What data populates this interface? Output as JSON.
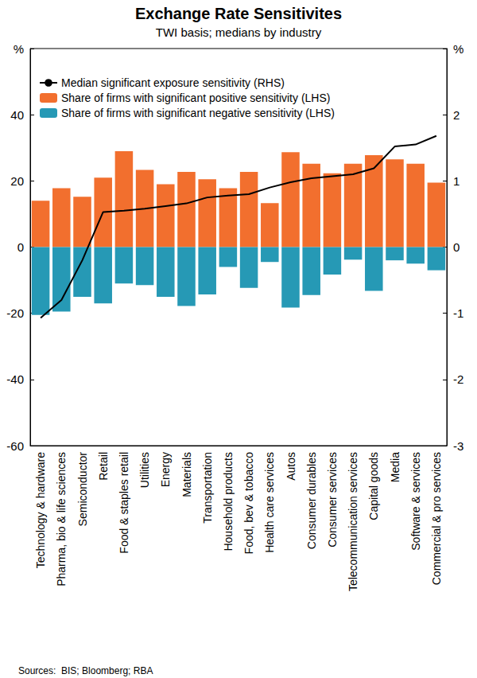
{
  "chart_data": {
    "type": "bar",
    "title": "Exchange Rate Sensitivites",
    "subtitle": "TWI basis; medians by industry",
    "caption": "Sources:  BIS; Bloomberg; RBA",
    "categories": [
      "Technology & hardware",
      "Pharma, bio & life sciences",
      "Semiconductor",
      "Retail",
      "Food & staples retail",
      "Utilities",
      "Energy",
      "Materials",
      "Transportation",
      "Household products",
      "Food, bev & tobacco",
      "Health care services",
      "Autos",
      "Consumer durables",
      "Consumer services",
      "Telecommunication services",
      "Capital goods",
      "Media",
      "Software & services",
      "Commercial & pro services"
    ],
    "series": [
      {
        "name": "Median significant exposure sensitivity (RHS)",
        "type": "line",
        "axis": "y2",
        "color": "#000000",
        "values": [
          -1.07,
          -0.8,
          -0.2,
          0.53,
          0.55,
          0.58,
          0.62,
          0.66,
          0.75,
          0.78,
          0.8,
          0.9,
          0.98,
          1.04,
          1.07,
          1.1,
          1.19,
          1.52,
          1.55,
          1.68
        ]
      },
      {
        "name": "Share of firms with significant positive sensitivity (LHS)",
        "type": "bar",
        "color": "#f26f2e",
        "values": [
          14,
          17.8,
          15.2,
          21,
          29,
          23.3,
          19,
          22.7,
          20.5,
          17.8,
          22.7,
          13.3,
          28.7,
          25.2,
          22.3,
          25.2,
          27.8,
          26.5,
          25.2,
          19.5
        ]
      },
      {
        "name": "Share of firms with significant negative sensitivity (LHS)",
        "type": "bar",
        "color": "#2699b5",
        "values": [
          -20.5,
          -19.5,
          -15,
          -17,
          -11,
          -11.5,
          -15,
          -17.8,
          -14.3,
          -6,
          -12.3,
          -4.5,
          -18.3,
          -14.5,
          -8.3,
          -3.8,
          -13.2,
          -4,
          -5,
          -7
        ]
      }
    ],
    "ylim": [
      -60,
      60
    ],
    "yticks": [
      -60,
      -40,
      -20,
      0,
      20,
      40,
      {
        "value": 60,
        "label": "%"
      }
    ],
    "y2lim": [
      -3,
      3
    ],
    "y2ticks": [
      -3,
      -2,
      -1,
      0,
      1,
      2,
      {
        "value": 3,
        "label": "%"
      }
    ],
    "grid": false,
    "legend": "upper left"
  }
}
